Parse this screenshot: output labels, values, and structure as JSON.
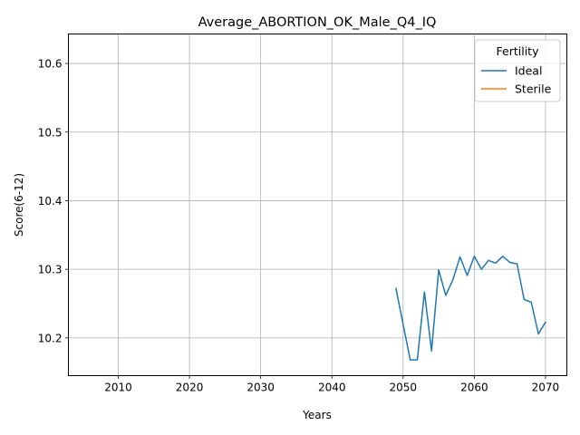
{
  "chart_data": {
    "type": "line",
    "title": "Average_ABORTION_OK_Male_Q4_IQ",
    "xlabel": "Years",
    "ylabel": "Score(6-12)",
    "xlim": [
      2003,
      2073
    ],
    "ylim": [
      10.145,
      10.643
    ],
    "xticks": [
      2010,
      2020,
      2030,
      2040,
      2050,
      2060,
      2070
    ],
    "yticks": [
      10.2,
      10.3,
      10.4,
      10.5,
      10.6
    ],
    "xtick_labels": [
      "2010",
      "2020",
      "2030",
      "2040",
      "2050",
      "2060",
      "2070"
    ],
    "ytick_labels": [
      "10.2",
      "10.3",
      "10.4",
      "10.5",
      "10.6"
    ],
    "grid": true,
    "legend": {
      "title": "Fertility",
      "placement": "upper right"
    },
    "series": [
      {
        "name": "Ideal",
        "color": "#1f77b4",
        "x": [
          2049,
          2050,
          2051,
          2052,
          2053,
          2054,
          2055,
          2056,
          2057,
          2058,
          2059,
          2060,
          2061,
          2062,
          2063,
          2064,
          2065,
          2066,
          2067,
          2068,
          2069,
          2070
        ],
        "y": [
          10.272,
          10.22,
          10.168,
          10.168,
          10.267,
          10.181,
          10.299,
          10.262,
          10.285,
          10.318,
          10.291,
          10.319,
          10.3,
          10.313,
          10.309,
          10.319,
          10.31,
          10.308,
          10.256,
          10.252,
          10.206,
          10.223
        ]
      },
      {
        "name": "Sterile",
        "color": "#ff7f0e",
        "x": [],
        "y": []
      }
    ]
  }
}
